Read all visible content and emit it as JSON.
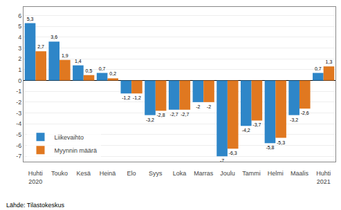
{
  "chart_data": {
    "type": "bar",
    "categories": [
      "Huhti\n2020",
      "Touko",
      "Kesä",
      "Heinä",
      "Elo",
      "Syys",
      "Loka",
      "Marras",
      "Joulu",
      "Tammi",
      "Helmi",
      "Maalis",
      "Huhti\n2021"
    ],
    "series": [
      {
        "name": "Liikevaihto",
        "color": "#2e86c8",
        "values": [
          5.3,
          3.6,
          1.4,
          0.7,
          -1.2,
          -3.2,
          -2.7,
          -2.0,
          -7.0,
          -4.2,
          -5.8,
          -3.2,
          0.7
        ],
        "value_labels": [
          "5,3",
          "3,6",
          "1,4",
          "0,7",
          "-1,2",
          "-3,2",
          "-2,7",
          "-2",
          "-7",
          "-4,2",
          "-5,8",
          "-3,2",
          "0,7"
        ]
      },
      {
        "name": "Myynnin määrä",
        "color": "#e07820",
        "values": [
          2.7,
          1.9,
          0.5,
          0.2,
          -1.2,
          -2.8,
          -2.7,
          -2.0,
          -6.3,
          -3.7,
          -5.3,
          -2.6,
          1.3
        ],
        "value_labels": [
          "2,7",
          "1,9",
          "0,5",
          "0,2",
          "-1,2",
          "-2,8",
          "-2,7",
          "-2",
          "-6,3",
          "-3,7",
          "-5,3",
          "-2,6",
          "1,3"
        ]
      }
    ],
    "ylim": [
      -7.5,
      6.8
    ],
    "yticks": [
      -7,
      -6,
      -5,
      -4,
      -3,
      -2,
      -1,
      0,
      1,
      2,
      3,
      4,
      5,
      6
    ],
    "grid": true,
    "legend": "lower left",
    "data_labels": true,
    "annotations": [
      "Lähde: Tilastokeskus"
    ]
  }
}
